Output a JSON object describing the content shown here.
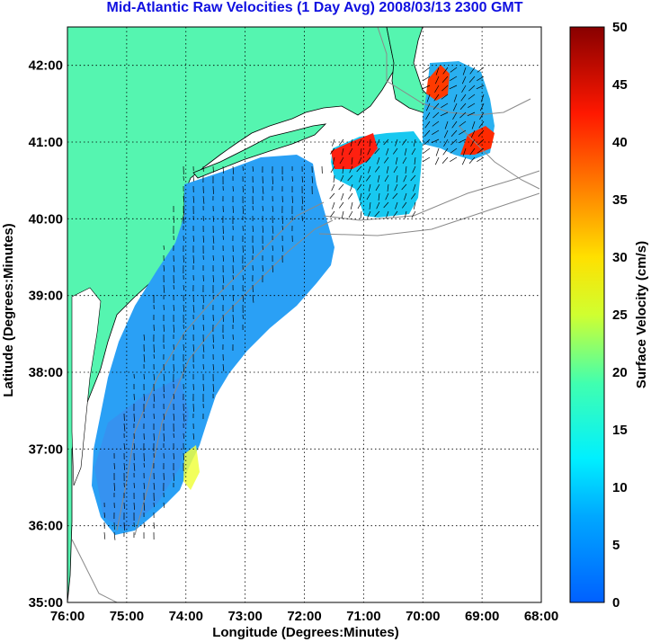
{
  "title": "Mid-Atlantic Raw Velocities (1 Day Avg) 2008/03/13 2300 GMT",
  "x_axis": {
    "label": "Longitude (Degrees:Minutes)",
    "ticks": [
      "76:00",
      "75:00",
      "74:00",
      "73:00",
      "72:00",
      "71:00",
      "70:00",
      "69:00",
      "68:00"
    ]
  },
  "y_axis": {
    "label": "Latitude (Degrees:Minutes)",
    "ticks": [
      "42:00",
      "41:00",
      "40:00",
      "39:00",
      "38:00",
      "37:00",
      "36:00",
      "35:00"
    ]
  },
  "colorbar": {
    "label": "Surface Velocity (cm/s)",
    "ticks": [
      "50",
      "45",
      "40",
      "35",
      "30",
      "25",
      "20",
      "15",
      "10",
      "5",
      "0"
    ],
    "range": [
      0,
      50
    ]
  },
  "map": {
    "lon_range": [
      -76,
      -68
    ],
    "lat_range": [
      35,
      42.5
    ],
    "land_color": "#55f5b0",
    "ocean_color": "#ffffff",
    "gridlines": true
  }
}
